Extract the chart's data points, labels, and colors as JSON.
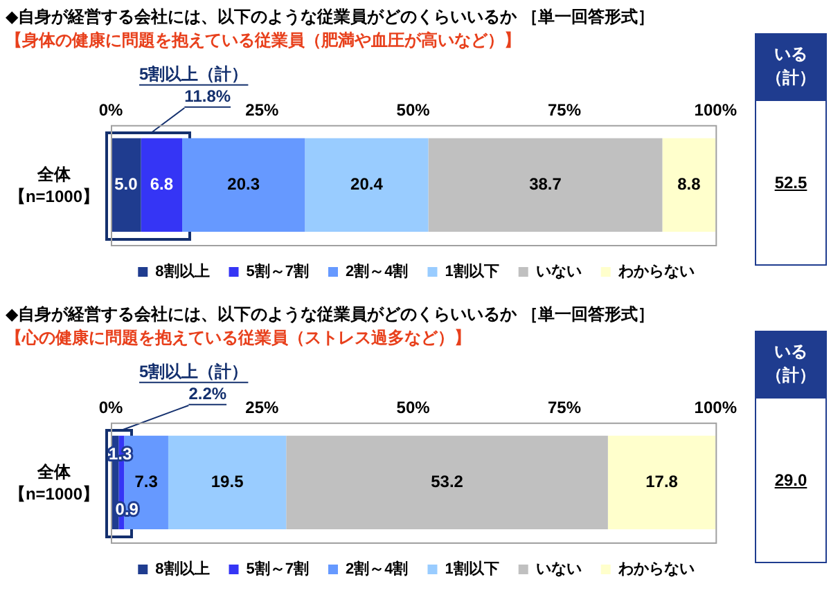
{
  "chart_data": [
    {
      "type": "bar",
      "orientation": "horizontal",
      "stacked": true,
      "title": "◆自身が経営する会社には、以下のような従業員がどのくらいいるか ［単一回答形式］",
      "subtitle": "【身体の健康に問題を抱えている従業員（肥満や血圧が高いなど）】",
      "categories": [
        "全体【n=1000】"
      ],
      "series": [
        {
          "name": "8割以上",
          "color": "#1f3c8f",
          "values": [
            5.0
          ],
          "value_labels": [
            "5.0"
          ]
        },
        {
          "name": "5割～7割",
          "color": "#3535f5",
          "values": [
            6.8
          ],
          "value_labels": [
            "6.8"
          ]
        },
        {
          "name": "2割～4割",
          "color": "#6699ff",
          "values": [
            20.3
          ],
          "value_labels": [
            "20.3"
          ]
        },
        {
          "name": "1割以下",
          "color": "#99ccff",
          "values": [
            20.4
          ],
          "value_labels": [
            "20.4"
          ]
        },
        {
          "name": "いない",
          "color": "#c0c0c0",
          "values": [
            38.7
          ],
          "value_labels": [
            "38.7"
          ]
        },
        {
          "name": "わからない",
          "color": "#ffffcc",
          "values": [
            8.8
          ],
          "value_labels": [
            "8.8"
          ]
        }
      ],
      "xlim": [
        0,
        100
      ],
      "xticks": [
        {
          "value": 0,
          "label": "0%"
        },
        {
          "value": 25,
          "label": "25%"
        },
        {
          "value": 50,
          "label": "50%"
        },
        {
          "value": 75,
          "label": "75%"
        },
        {
          "value": 100,
          "label": "100%"
        }
      ],
      "legend": "bottom",
      "annotations": [
        "5割以上（計）",
        "11.8%",
        "いる（計）",
        "52.5"
      ]
    },
    {
      "type": "bar",
      "orientation": "horizontal",
      "stacked": true,
      "title": "◆自身が経営する会社には、以下のような従業員がどのくらいいるか ［単一回答形式］",
      "subtitle": "【心の健康に問題を抱えている従業員（ストレス過多など）】",
      "categories": [
        "全体【n=1000】"
      ],
      "series": [
        {
          "name": "8割以上",
          "color": "#1f3c8f",
          "values": [
            1.3
          ],
          "value_labels": [
            "1.3"
          ]
        },
        {
          "name": "5割～7割",
          "color": "#3535f5",
          "values": [
            0.9
          ],
          "value_labels": [
            "0.9"
          ]
        },
        {
          "name": "2割～4割",
          "color": "#6699ff",
          "values": [
            7.3
          ],
          "value_labels": [
            "7.3"
          ]
        },
        {
          "name": "1割以下",
          "color": "#99ccff",
          "values": [
            19.5
          ],
          "value_labels": [
            "19.5"
          ]
        },
        {
          "name": "いない",
          "color": "#c0c0c0",
          "values": [
            53.2
          ],
          "value_labels": [
            "53.2"
          ]
        },
        {
          "name": "わからない",
          "color": "#ffffcc",
          "values": [
            17.8
          ],
          "value_labels": [
            "17.8"
          ]
        }
      ],
      "xlim": [
        0,
        100
      ],
      "xticks": [
        {
          "value": 0,
          "label": "0%"
        },
        {
          "value": 25,
          "label": "25%"
        },
        {
          "value": 50,
          "label": "50%"
        },
        {
          "value": 75,
          "label": "75%"
        },
        {
          "value": 100,
          "label": "100%"
        }
      ],
      "legend": "bottom",
      "annotations": [
        "5割以上（計）",
        "2.2%",
        "いる（計）",
        "29.0"
      ]
    }
  ]
}
